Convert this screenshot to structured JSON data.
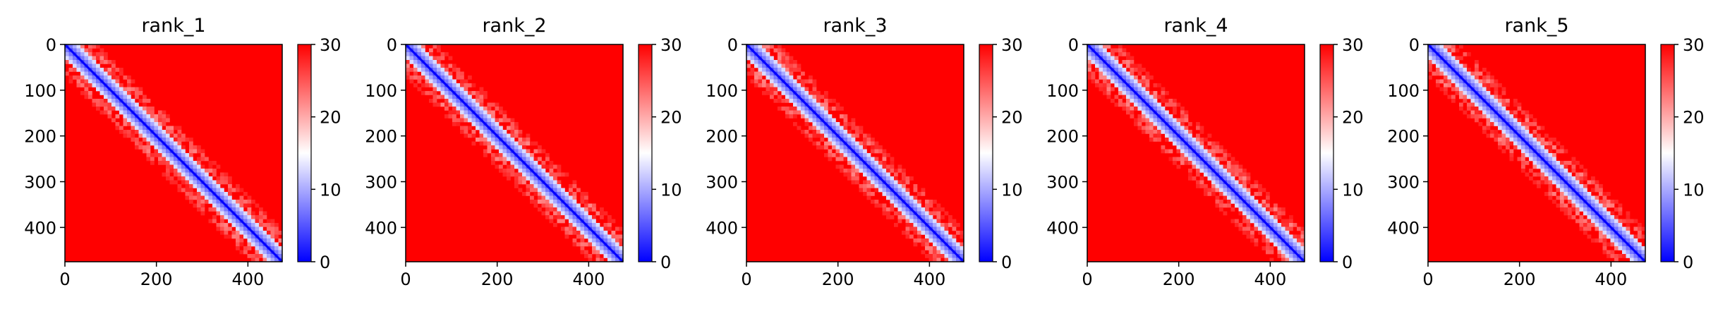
{
  "chart_data": {
    "type": "heatmap",
    "colormap": "bwr",
    "colors": {
      "low": "#0000ff",
      "mid": "#ffffff",
      "high": "#ff0000"
    },
    "vmin": 0,
    "vmax": 30,
    "n_residues": 475,
    "xlim": [
      0,
      475
    ],
    "ylim": [
      475,
      0
    ],
    "x_ticks": [
      "0",
      "200",
      "400"
    ],
    "x_tick_values": [
      0,
      200,
      400
    ],
    "y_ticks": [
      "0",
      "100",
      "200",
      "300",
      "400"
    ],
    "y_tick_values": [
      0,
      100,
      200,
      300,
      400
    ],
    "colorbar_ticks": [
      "0",
      "10",
      "20",
      "30"
    ],
    "colorbar_tick_values": [
      0,
      10,
      20,
      30
    ],
    "panels": [
      {
        "title": "rank_1"
      },
      {
        "title": "rank_2"
      },
      {
        "title": "rank_3"
      },
      {
        "title": "rank_4"
      },
      {
        "title": "rank_5"
      }
    ]
  }
}
